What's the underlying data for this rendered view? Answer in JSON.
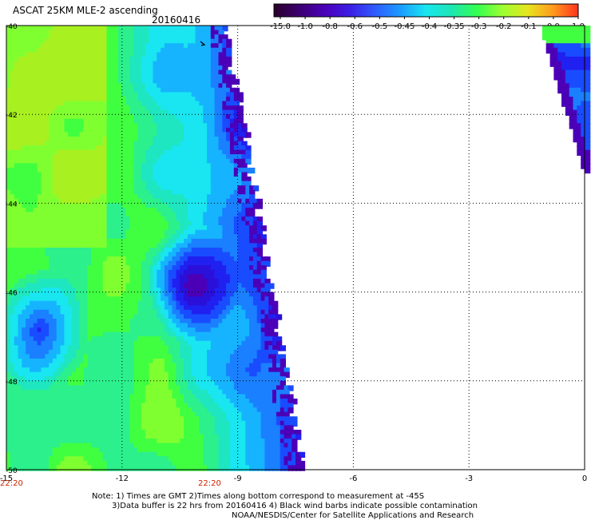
{
  "header": {
    "title": "ASCAT 25KM MLE-2 ascending",
    "date": "20160416"
  },
  "colorbar": {
    "labels": [
      "-15.0",
      "-1.0",
      "-0.8",
      "-0.6",
      "-0.5",
      "-0.45",
      "-0.4",
      "-0.35",
      "-0.3",
      "-0.2",
      "-0.1",
      "0.0",
      "1.0"
    ],
    "colors": [
      "#2a002a",
      "#3a0070",
      "#4b00b8",
      "#3c1ee6",
      "#2e5cff",
      "#1a9dff",
      "#19e6f0",
      "#1ee6b4",
      "#32ff50",
      "#9bff32",
      "#e6e61e",
      "#ff9a1e",
      "#ff321e"
    ]
  },
  "map": {
    "lon_ticks": [
      "-15",
      "-12",
      "-9",
      "-6",
      "-3",
      "0"
    ],
    "lat_ticks": [
      "-40",
      "-42",
      "-44",
      "-46",
      "-48",
      "-50"
    ],
    "times": [
      "22:20",
      "22:20"
    ]
  },
  "notes": [
    "Note: 1) Times are GMT 2)Times along bottom correspond to measurement at -45S",
    "3)Data buffer is 22 hrs from 20160416 4) Black wind barbs indicate possible contamination",
    "NOAA/NESDIS/Center for Satellite Applications and Research"
  ]
}
